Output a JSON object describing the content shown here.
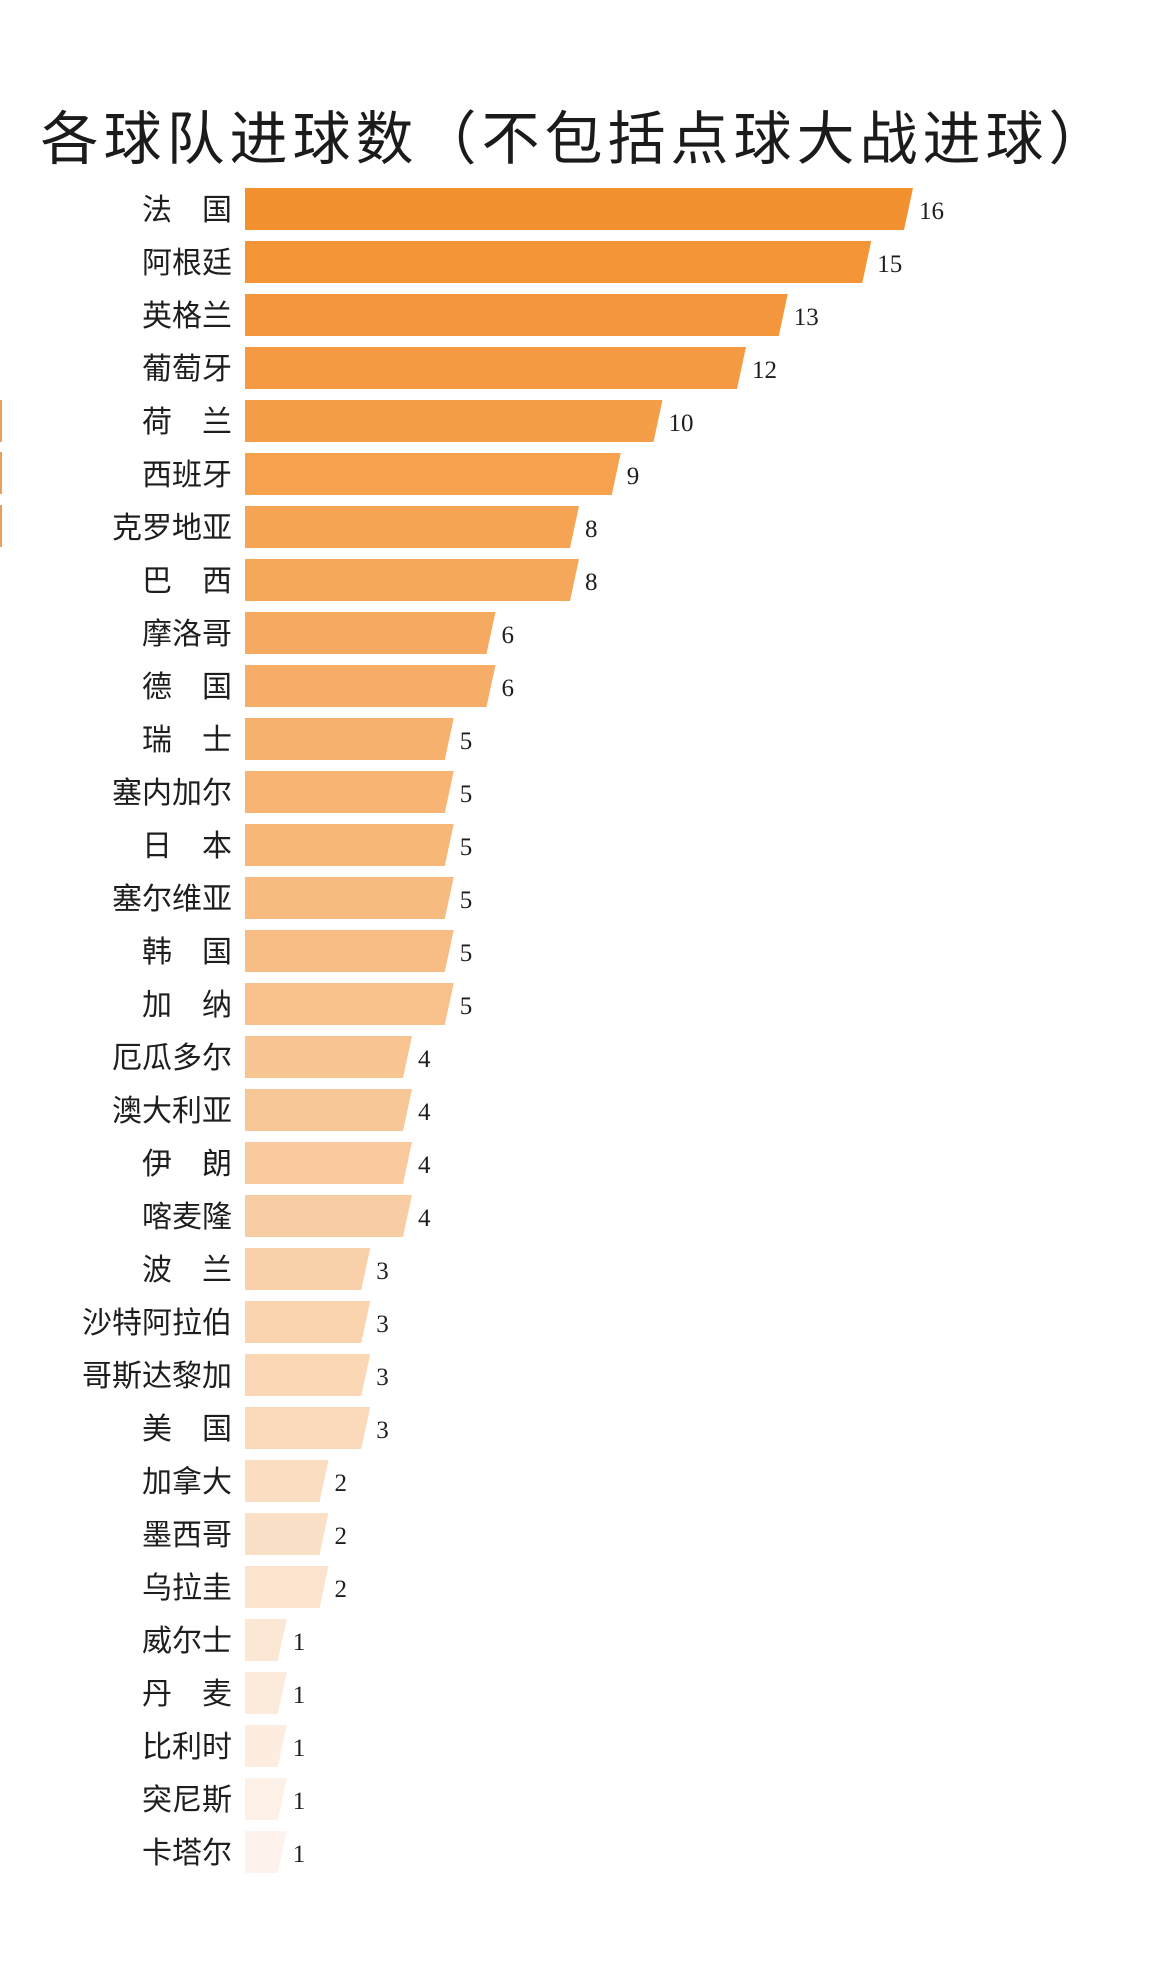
{
  "chart_data": {
    "type": "bar",
    "orientation": "horizontal",
    "title": "各球队进球数（不包括点球大战进球）",
    "categories": [
      "法　国",
      "阿根廷",
      "英格兰",
      "葡萄牙",
      "荷　兰",
      "西班牙",
      "克罗地亚",
      "巴　西",
      "摩洛哥",
      "德　国",
      "瑞　士",
      "塞内加尔",
      "日　本",
      "塞尔维亚",
      "韩　国",
      "加　纳",
      "厄瓜多尔",
      "澳大利亚",
      "伊　朗",
      "喀麦隆",
      "波　兰",
      "沙特阿拉伯",
      "哥斯达黎加",
      "美　国",
      "加拿大",
      "墨西哥",
      "乌拉圭",
      "威尔士",
      "丹　麦",
      "比利时",
      "突尼斯",
      "卡塔尔"
    ],
    "values": [
      16,
      15,
      13,
      12,
      10,
      9,
      8,
      8,
      6,
      6,
      5,
      5,
      5,
      5,
      5,
      5,
      4,
      4,
      4,
      4,
      3,
      3,
      3,
      3,
      2,
      2,
      2,
      1,
      1,
      1,
      1,
      1
    ],
    "xlim": [
      0,
      16
    ],
    "grid": false,
    "legend": "none",
    "colors": {
      "start": "#f39130",
      "end": "#fdf3ec",
      "label": "#1e1e1e"
    }
  }
}
